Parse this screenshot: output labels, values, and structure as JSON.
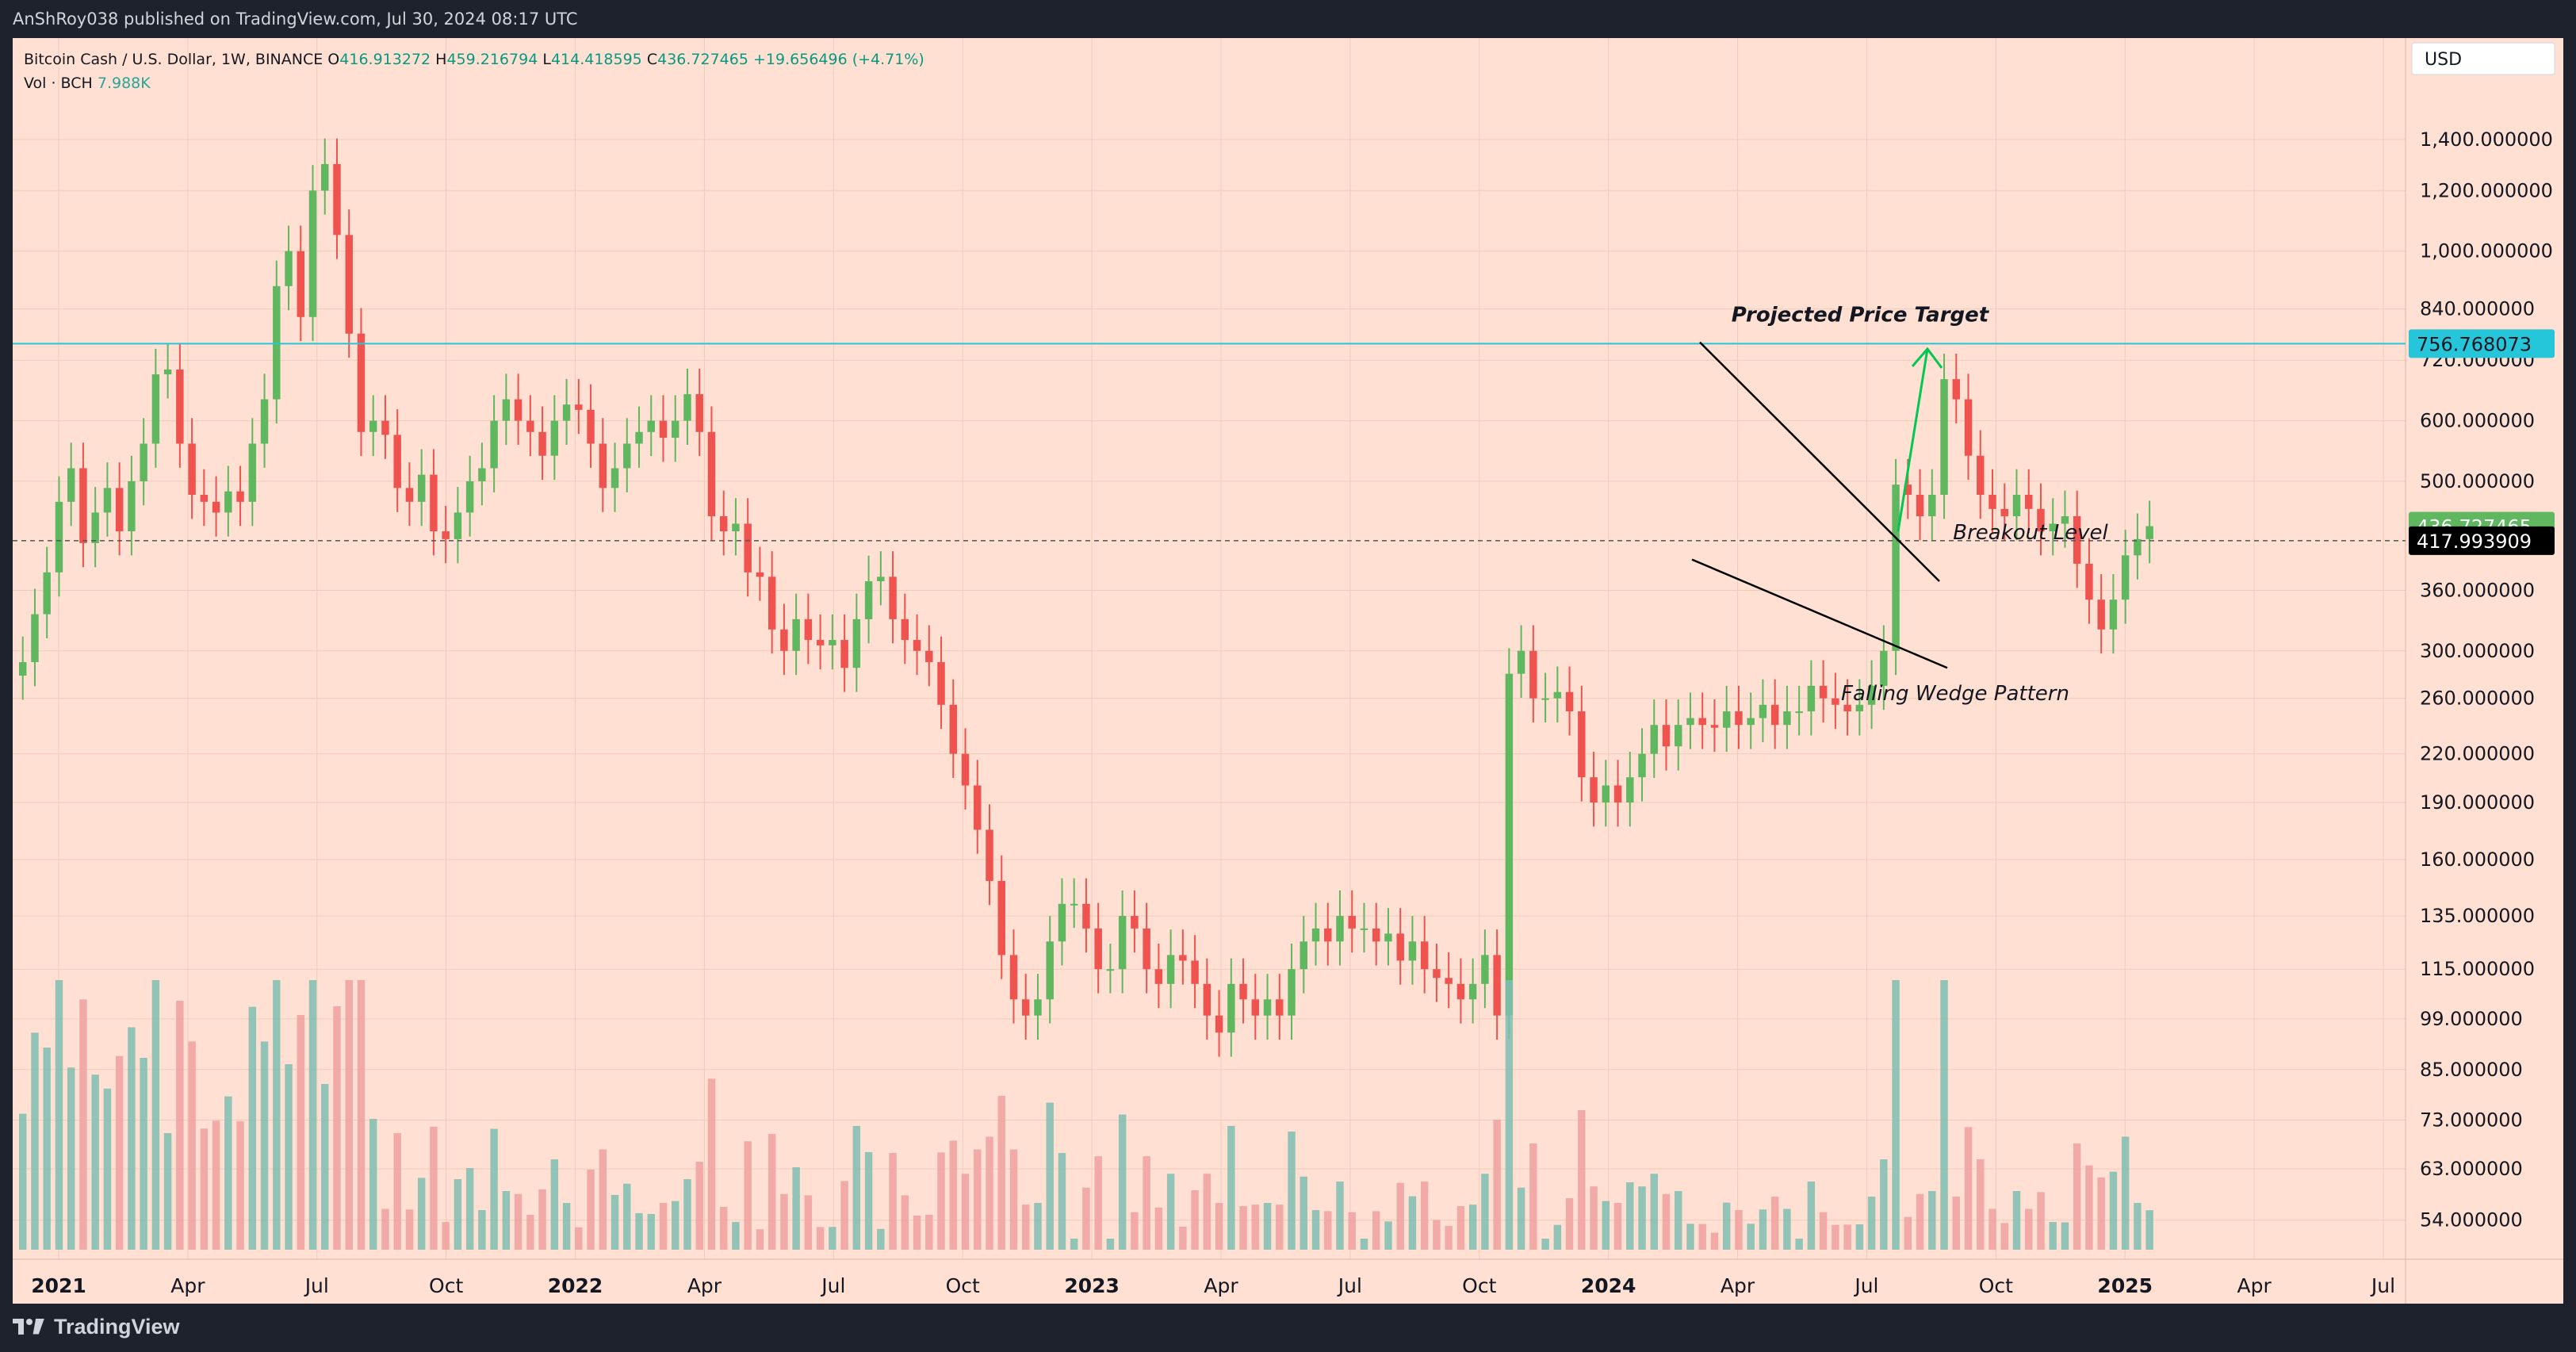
{
  "header": {
    "published": "AnShRoy038 published on TradingView.com, Jul 30, 2024 08:17 UTC"
  },
  "legend": {
    "symbol": "Bitcoin Cash / U.S. Dollar, 1W, BINANCE",
    "o_label": "O",
    "o_val": "416.913272",
    "h_label": "H",
    "h_val": "459.216794",
    "l_label": "L",
    "l_val": "414.418595",
    "c_label": "C",
    "c_val": "436.727465",
    "change": "+19.656496 (+4.71%)",
    "vol_label": "Vol · BCH",
    "vol_val": "7.988K"
  },
  "footer": {
    "brand": "TradingView"
  },
  "colors": {
    "background": "#ffe0d2",
    "up": "#089981",
    "down": "#f23645",
    "candle_up": "#5fb760",
    "candle_down": "#ef5350",
    "vol_up": "#7fbdb3",
    "vol_down": "#f0a0a0",
    "target_line": "#26c6da",
    "arrow": "#00c853"
  },
  "chart_data": {
    "type": "candlestick",
    "timeframe": "1W",
    "currency": "USD",
    "y_scale": "log",
    "ylim": [
      48,
      1900
    ],
    "y_ticks": [
      "1,400.000000",
      "1,200.000000",
      "1,000.000000",
      "840.000000",
      "720.000000",
      "600.000000",
      "500.000000",
      "360.000000",
      "300.000000",
      "260.000000",
      "220.000000",
      "190.000000",
      "160.000000",
      "135.000000",
      "115.000000",
      "99.000000",
      "85.000000",
      "73.000000",
      "63.000000",
      "54.000000"
    ],
    "x_ticks": [
      "2021",
      "Apr",
      "Jul",
      "Oct",
      "2022",
      "Apr",
      "Jul",
      "Oct",
      "2023",
      "Apr",
      "Jul",
      "Oct",
      "2024",
      "Apr",
      "Jul",
      "Oct",
      "2025",
      "Apr",
      "Jul"
    ],
    "price_labels": {
      "target": "756.768073",
      "last": "436.727465",
      "level": "417.993909"
    },
    "annotations": {
      "target": "Projected Price Target",
      "breakout": "Breakout Level",
      "wedge": "Falling Wedge Pattern"
    },
    "closes": [
      290,
      335,
      380,
      470,
      520,
      415,
      455,
      490,
      430,
      500,
      560,
      690,
      700,
      560,
      480,
      470,
      455,
      485,
      470,
      560,
      640,
      900,
      1000,
      820,
      1200,
      1300,
      1050,
      780,
      580,
      600,
      575,
      490,
      470,
      510,
      430,
      420,
      455,
      500,
      520,
      600,
      640,
      600,
      580,
      540,
      600,
      630,
      620,
      560,
      490,
      520,
      560,
      580,
      600,
      570,
      600,
      650,
      580,
      450,
      430,
      440,
      380,
      375,
      320,
      300,
      330,
      310,
      305,
      310,
      285,
      330,
      370,
      375,
      330,
      310,
      300,
      290,
      255,
      220,
      200,
      175,
      150,
      120,
      105,
      100,
      105,
      125,
      140,
      140,
      130,
      115,
      115,
      135,
      130,
      115,
      110,
      120,
      118,
      110,
      100,
      95,
      110,
      105,
      100,
      105,
      100,
      115,
      125,
      130,
      125,
      135,
      130,
      130,
      125,
      128,
      118,
      125,
      115,
      112,
      110,
      105,
      110,
      120,
      100,
      280,
      300,
      260,
      260,
      265,
      250,
      205,
      190,
      200,
      190,
      205,
      220,
      240,
      225,
      240,
      245,
      240,
      238,
      250,
      240,
      245,
      255,
      240,
      250,
      250,
      270,
      260,
      255,
      250,
      255,
      270,
      300,
      495,
      480,
      450,
      480,
      680,
      640,
      540,
      480,
      460,
      450,
      480,
      460,
      430,
      440,
      450,
      390,
      350,
      320,
      350,
      400,
      420,
      436.727465
    ],
    "volume_series": {
      "name": "Vol · BCH",
      "last": "7.988K"
    }
  }
}
